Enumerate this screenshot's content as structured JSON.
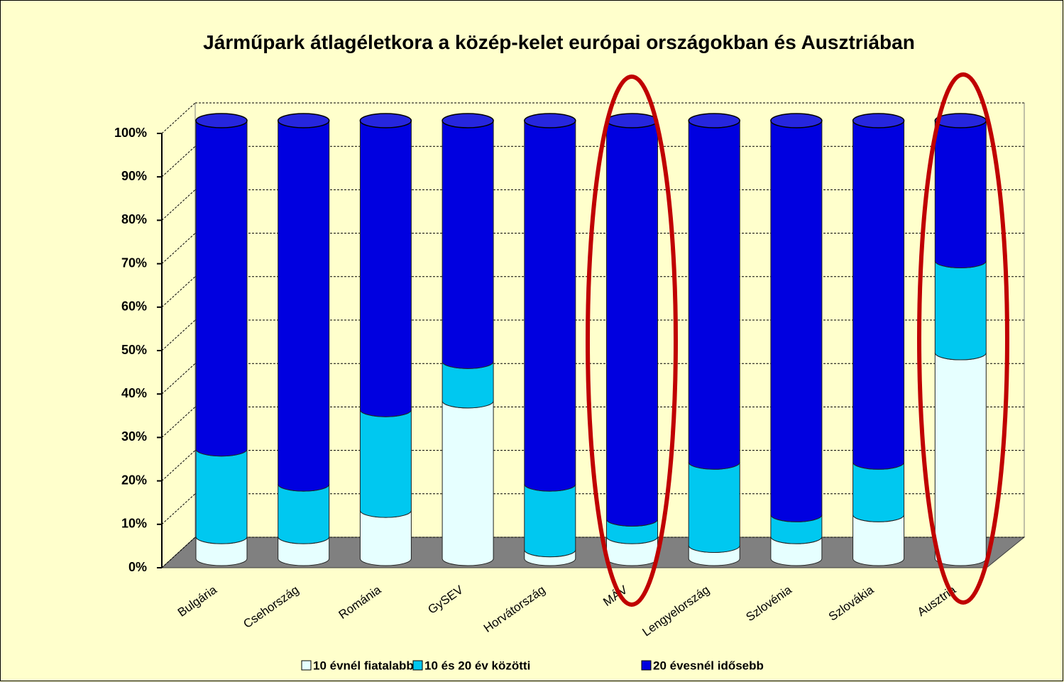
{
  "chart_data": {
    "type": "bar3d_stacked",
    "title": "Járműpark átlagéletkora a közép-kelet európai országokban és Ausztriában",
    "categories": [
      "Bulgária",
      "Csehország",
      "Románia",
      "GySEV",
      "Horvátország",
      "MÁV",
      "Lengyelország",
      "Szlovénia",
      "Szlovákia",
      "Ausztria"
    ],
    "series": [
      {
        "name": "10 évnél fiatalabb",
        "color": "#E6FFFF",
        "values": [
          5,
          5,
          11,
          36,
          2,
          5,
          3,
          5,
          10,
          47
        ]
      },
      {
        "name": "10 és 20 év közötti",
        "color": "#00C8F0",
        "values": [
          20,
          12,
          23,
          9,
          15,
          4,
          19,
          5,
          12,
          21
        ]
      },
      {
        "name": "20 évesnél idősebb",
        "color": "#0000E0",
        "values": [
          75,
          83,
          66,
          55,
          83,
          91,
          78,
          90,
          78,
          32
        ]
      }
    ],
    "ylim": [
      0,
      100
    ],
    "yticks": [
      {
        "value": 0,
        "label": "0%"
      },
      {
        "value": 10,
        "label": "10%"
      },
      {
        "value": 20,
        "label": "20%"
      },
      {
        "value": 30,
        "label": "30%"
      },
      {
        "value": 40,
        "label": "40%"
      },
      {
        "value": 50,
        "label": "50%"
      },
      {
        "value": 60,
        "label": "60%"
      },
      {
        "value": 70,
        "label": "70%"
      },
      {
        "value": 80,
        "label": "80%"
      },
      {
        "value": 90,
        "label": "90%"
      },
      {
        "value": 100,
        "label": "100%"
      }
    ],
    "grid": true,
    "legend": "bottom"
  }
}
